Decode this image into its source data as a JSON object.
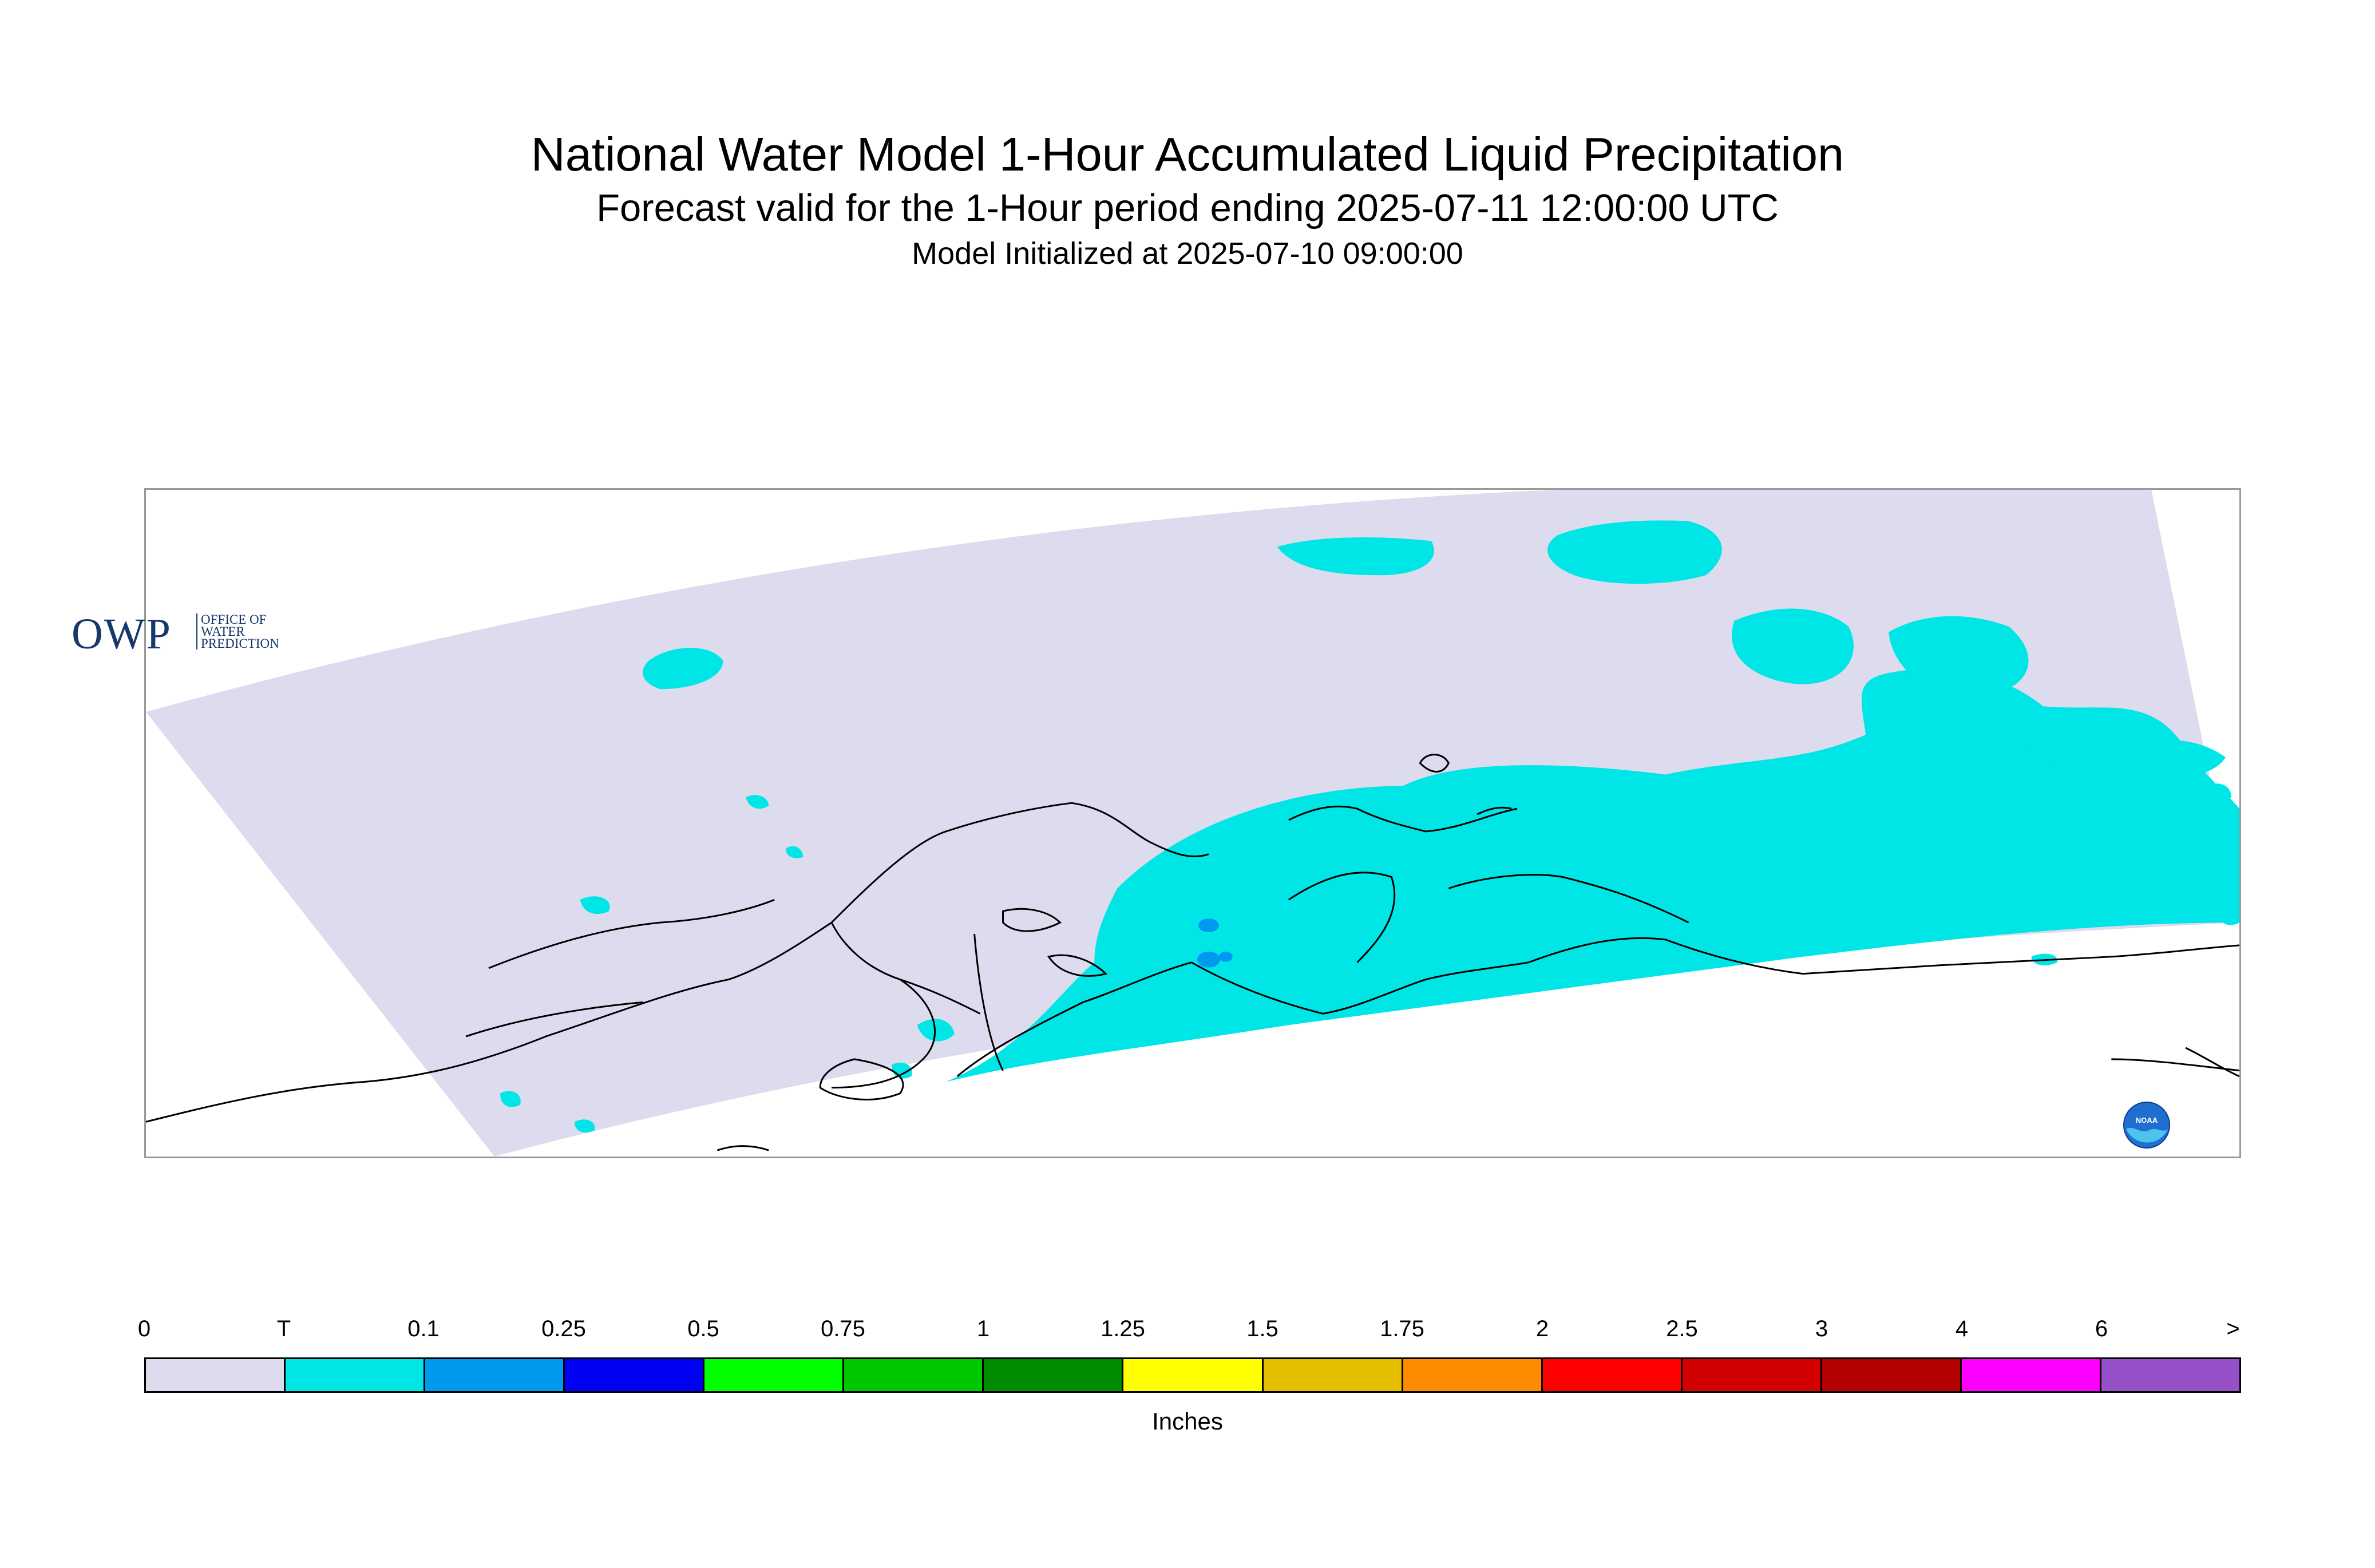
{
  "header": {
    "title": "National Water Model 1-Hour Accumulated Liquid Precipitation",
    "subtitle": "Forecast valid for the 1-Hour period ending 2025-07-11 12:00:00 UTC",
    "init": "Model Initialized at 2025-07-10 09:00:00"
  },
  "map": {
    "region_color": "#dcdcee",
    "precip_color_trace": "#00e5e5",
    "precip_color_light": "#0099f0",
    "coastline_color": "#000000"
  },
  "logos": {
    "owp": {
      "big": "OWP",
      "small": "Office of Water Prediction"
    },
    "noaa": {
      "text": "NOAA"
    }
  },
  "legend": {
    "labels": [
      "0",
      "T",
      "0.1",
      "0.25",
      "0.5",
      "0.75",
      "1",
      "1.25",
      "1.5",
      "1.75",
      "2",
      "2.5",
      "3",
      "4",
      "6",
      ">"
    ],
    "colors": [
      "#dcdcee",
      "#00e5e5",
      "#0099f0",
      "#0000f5",
      "#00ff00",
      "#00c800",
      "#008c00",
      "#ffff00",
      "#e6be00",
      "#ff8c00",
      "#ff0000",
      "#d20000",
      "#b40000",
      "#ff00ff",
      "#9650c8"
    ],
    "unit": "Inches"
  }
}
